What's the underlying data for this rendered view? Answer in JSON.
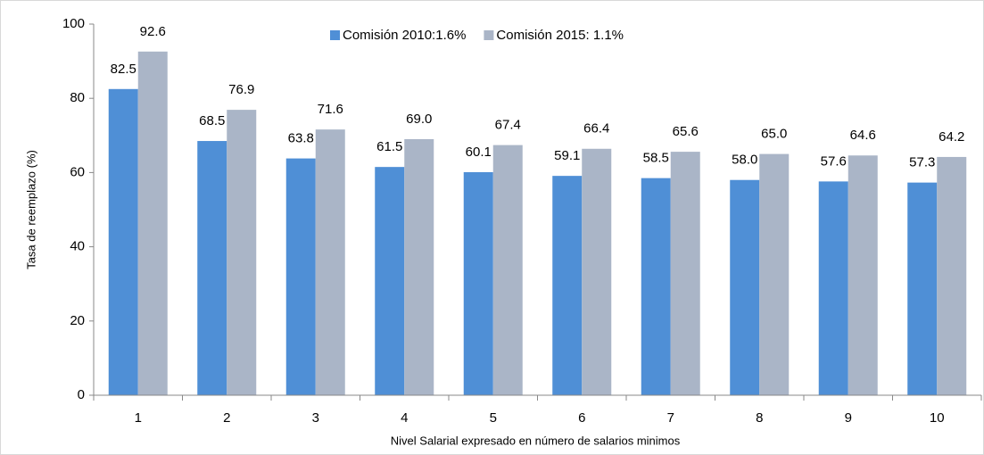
{
  "chart_data": {
    "type": "bar",
    "x_label": "Nivel Salarial expresado en número de salarios minimos",
    "y_label": "Tasa de reemplazo (%)",
    "categories": [
      "1",
      "2",
      "3",
      "4",
      "5",
      "6",
      "7",
      "8",
      "9",
      "10"
    ],
    "series": [
      {
        "name": "Comisión 2010:1.6%",
        "color": "#4f8fd6",
        "values": [
          82.5,
          68.5,
          63.8,
          61.5,
          60.1,
          59.1,
          58.5,
          58.0,
          57.6,
          57.3
        ],
        "value_labels": [
          "82.5",
          "68.5",
          "63.8",
          "61.5",
          "60.1",
          "59.1",
          "58.5",
          "58.0",
          "57.6",
          "57.3"
        ]
      },
      {
        "name": "Comisión 2015: 1.1%",
        "color": "#aab5c7",
        "values": [
          92.6,
          76.9,
          71.6,
          69.0,
          67.4,
          66.4,
          65.6,
          65.0,
          64.6,
          64.2
        ],
        "value_labels": [
          "92.6",
          "76.9",
          "71.6",
          "69.0",
          "67.4",
          "66.4",
          "65.6",
          "65.0",
          "64.6",
          "64.2"
        ]
      }
    ],
    "ylim": [
      0,
      100
    ],
    "yticks": [
      0,
      20,
      40,
      60,
      80,
      100
    ],
    "legend": "top"
  }
}
